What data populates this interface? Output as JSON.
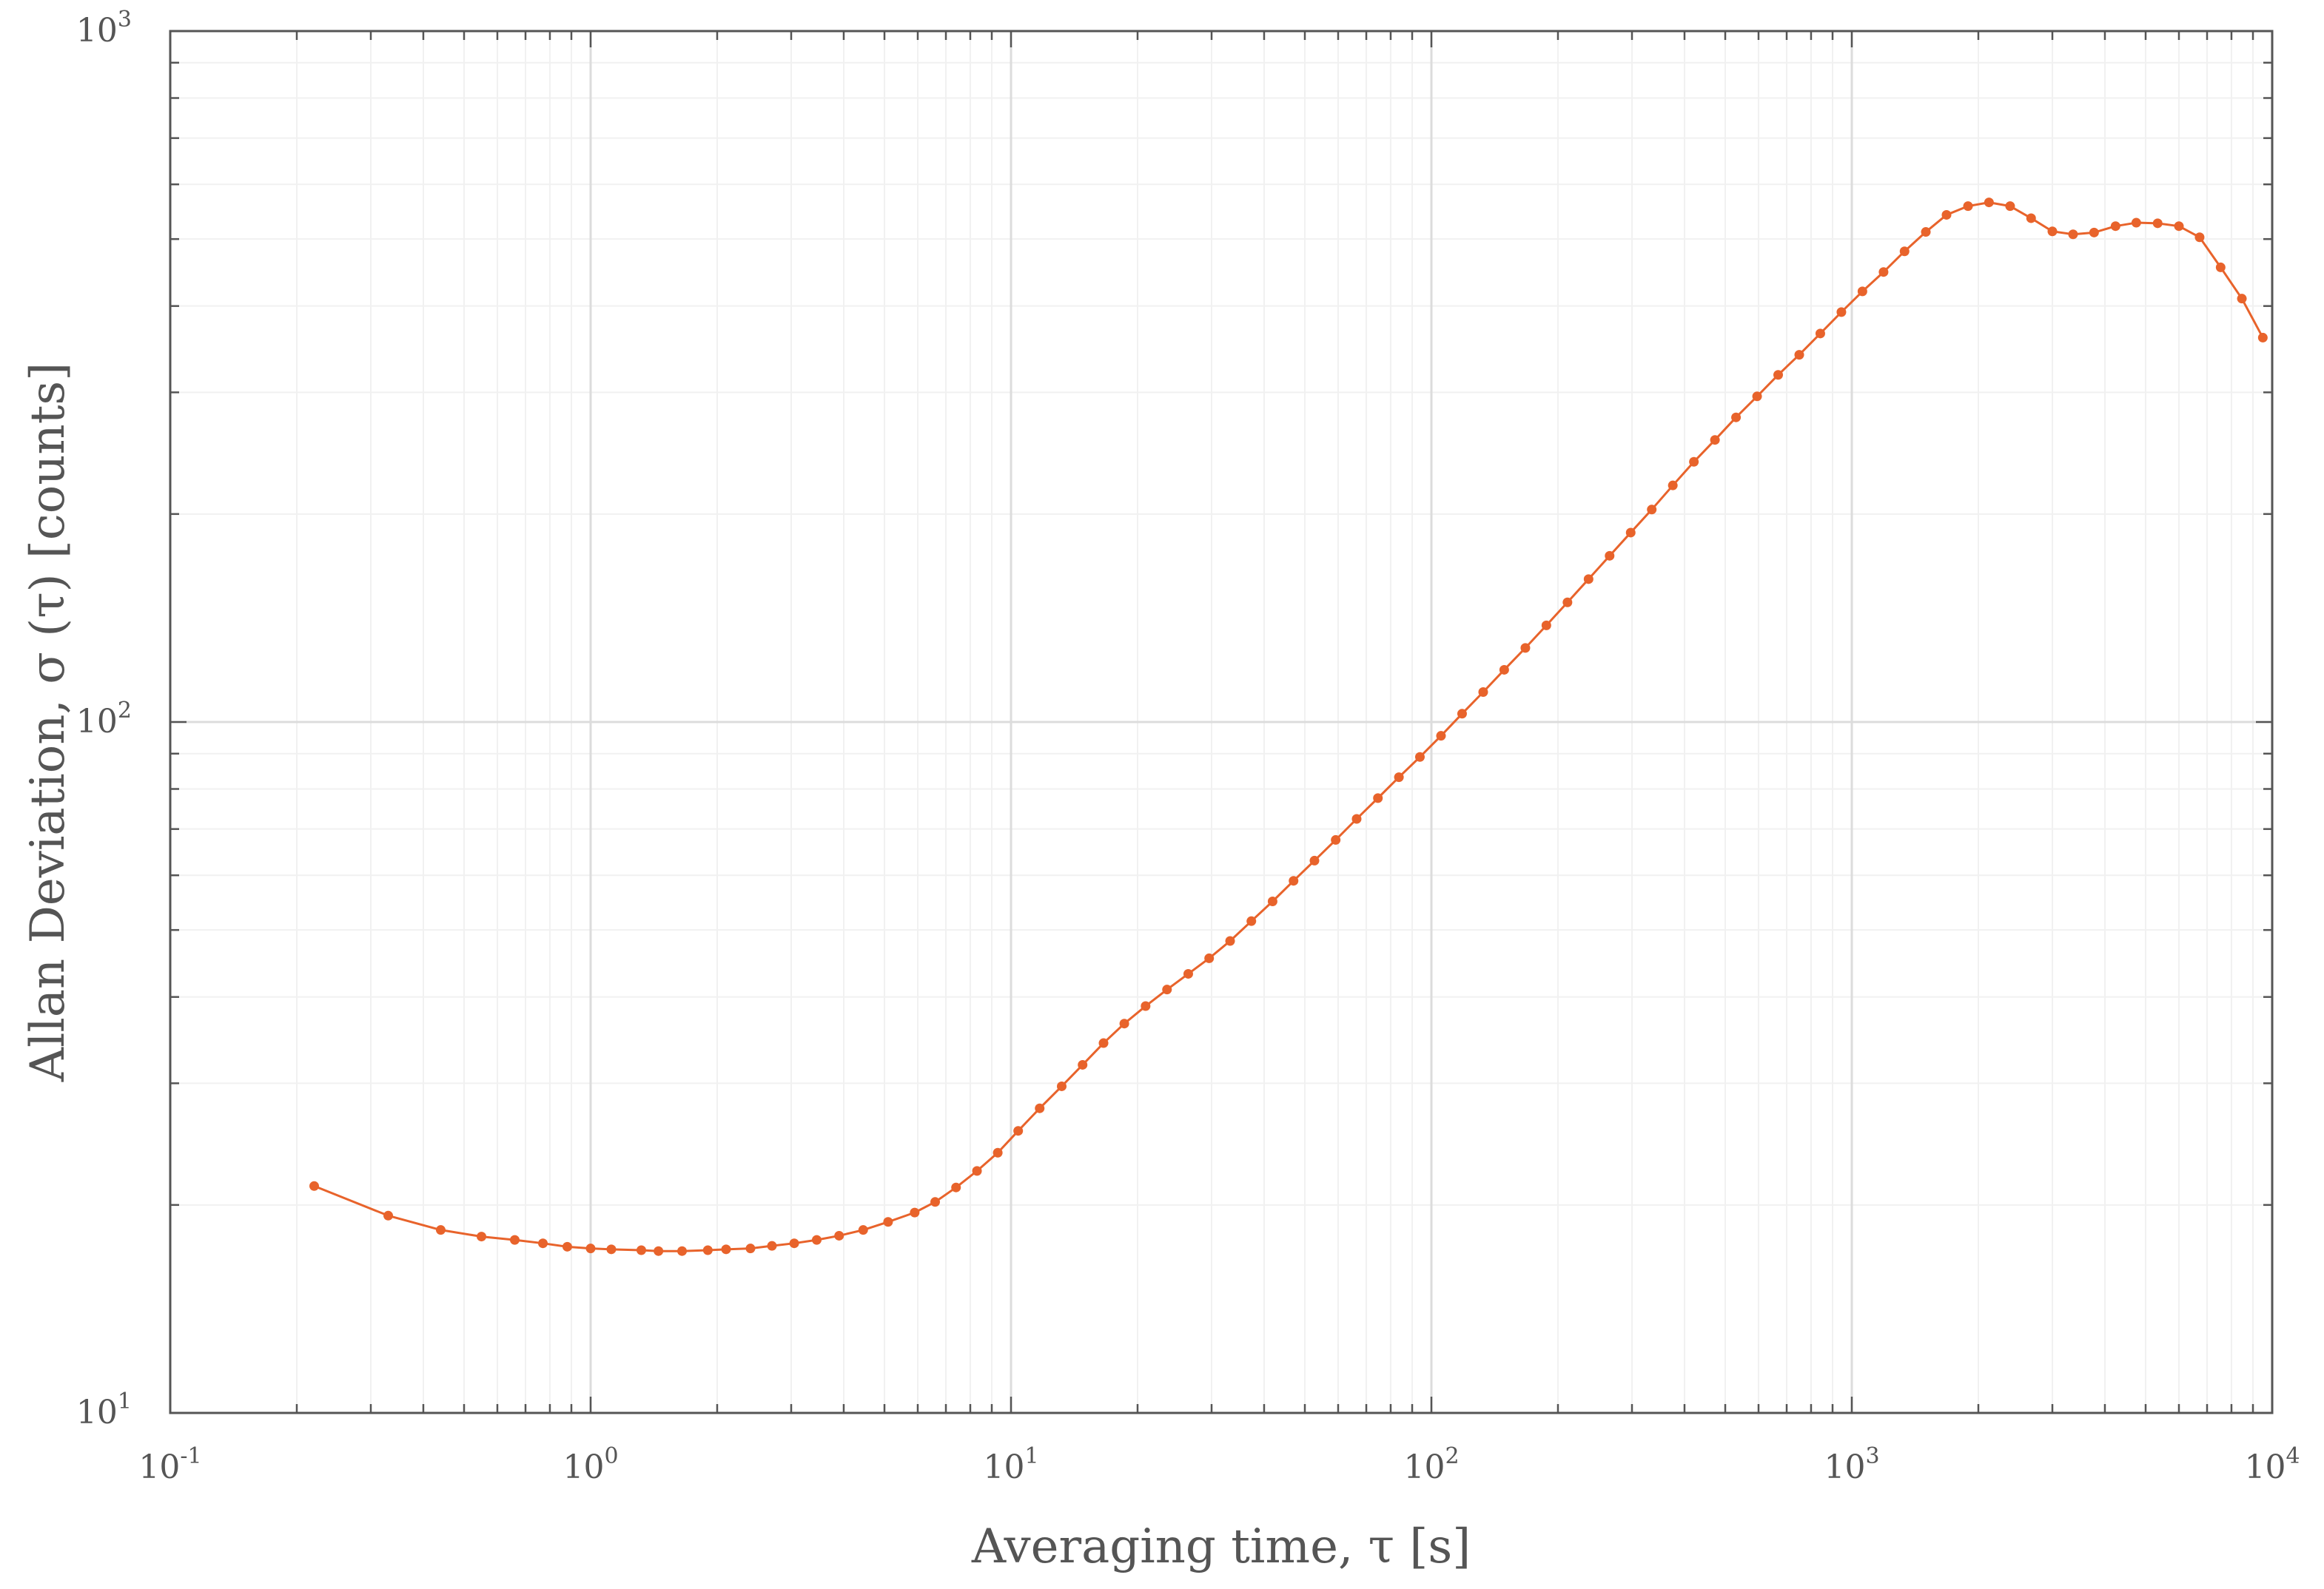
{
  "chart_data": {
    "type": "line",
    "title": "",
    "xlabel": "Averaging time, τ [s]",
    "ylabel": "Allan Deviation, σ (τ) [counts]",
    "xscale": "log",
    "yscale": "log",
    "xlim": [
      0.1,
      10000
    ],
    "ylim": [
      10,
      1000
    ],
    "grid": true,
    "minor_grid": true,
    "legend": "none",
    "x_ticks": [
      {
        "base": "10",
        "exp": "-1"
      },
      {
        "base": "10",
        "exp": "0"
      },
      {
        "base": "10",
        "exp": "1"
      },
      {
        "base": "10",
        "exp": "2"
      },
      {
        "base": "10",
        "exp": "3"
      },
      {
        "base": "10",
        "exp": "4"
      }
    ],
    "y_ticks": [
      {
        "base": "10",
        "exp": "1"
      },
      {
        "base": "10",
        "exp": "2"
      },
      {
        "base": "10",
        "exp": "3"
      }
    ],
    "series": [
      {
        "color": "#E8632B",
        "marker": "circle",
        "x": [
          0.22,
          0.33,
          0.44,
          0.55,
          0.66,
          0.77,
          0.88,
          1.0,
          1.12,
          1.32,
          1.45,
          1.65,
          1.9,
          2.1,
          2.4,
          2.7,
          3.05,
          3.45,
          3.9,
          4.45,
          5.1,
          5.9,
          6.6,
          7.4,
          8.3,
          9.3,
          10.4,
          11.7,
          13.2,
          14.8,
          16.6,
          18.6,
          20.9,
          23.5,
          26.4,
          29.6,
          33.2,
          37.3,
          41.9,
          47.0,
          52.7,
          59.2,
          66.4,
          74.6,
          83.7,
          93.9,
          105.4,
          118.3,
          132.8,
          149.0,
          167.3,
          187.7,
          210.7,
          236.5,
          265.4,
          297.9,
          334.3,
          375.2,
          421.1,
          472.6,
          530.4,
          595.3,
          668.1,
          749.9,
          841.6,
          944.6,
          1060,
          1190,
          1335,
          1500,
          1680,
          1890,
          2120,
          2380,
          2670,
          3000,
          3360,
          3770,
          4240,
          4750,
          5340,
          6000,
          6720,
          7540,
          8470,
          9500
        ],
        "y": [
          21.3,
          19.3,
          18.4,
          18.0,
          17.8,
          17.6,
          17.4,
          17.3,
          17.25,
          17.2,
          17.15,
          17.15,
          17.2,
          17.25,
          17.3,
          17.45,
          17.6,
          17.8,
          18.05,
          18.4,
          18.9,
          19.5,
          20.2,
          21.2,
          22.4,
          23.8,
          25.6,
          27.6,
          29.7,
          31.9,
          34.3,
          36.6,
          38.8,
          41.0,
          43.2,
          45.5,
          48.2,
          51.5,
          55.0,
          58.9,
          63.0,
          67.5,
          72.4,
          77.6,
          83.2,
          89.0,
          95.5,
          102.8,
          110.5,
          119.0,
          128.0,
          138.0,
          149.0,
          161.0,
          174.0,
          188.0,
          203.0,
          220.0,
          238.0,
          256.0,
          276.0,
          296.0,
          318.0,
          340.0,
          365.0,
          392.0,
          420.0,
          448.0,
          480.0,
          512.0,
          542.0,
          558.0,
          565.0,
          558.0,
          536.0,
          513.0,
          508.0,
          511.0,
          522.0,
          528.0,
          527.0,
          522.0,
          503.0,
          455.0,
          410.0,
          360.0
        ]
      }
    ]
  }
}
